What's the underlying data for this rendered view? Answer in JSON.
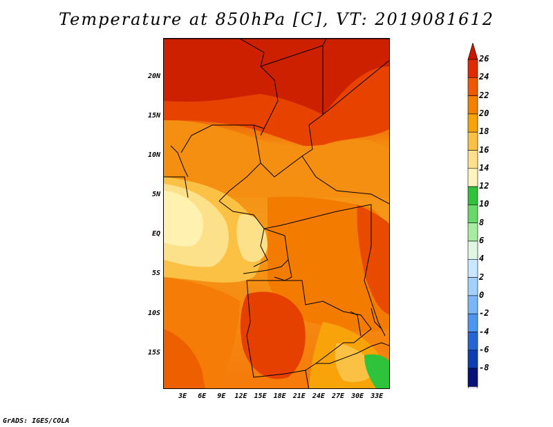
{
  "title": "Temperature at 850hPa [C], VT: 2019081612",
  "credit": "GrADS: IGES/COLA",
  "map": {
    "lat_range": [
      -19.5,
      25
    ],
    "lon_range": [
      0,
      35
    ],
    "lat_ticks": [
      {
        "label": "20N",
        "value": 20
      },
      {
        "label": "15N",
        "value": 15
      },
      {
        "label": "10N",
        "value": 10
      },
      {
        "label": "5N",
        "value": 5
      },
      {
        "label": "EQ",
        "value": 0
      },
      {
        "label": "5S",
        "value": -5
      },
      {
        "label": "10S",
        "value": -10
      },
      {
        "label": "15S",
        "value": -15
      }
    ],
    "lon_ticks": [
      {
        "label": "3E",
        "value": 3
      },
      {
        "label": "6E",
        "value": 6
      },
      {
        "label": "9E",
        "value": 9
      },
      {
        "label": "12E",
        "value": 12
      },
      {
        "label": "15E",
        "value": 15
      },
      {
        "label": "18E",
        "value": 18
      },
      {
        "label": "21E",
        "value": 21
      },
      {
        "label": "24E",
        "value": 24
      },
      {
        "label": "27E",
        "value": 27
      },
      {
        "label": "30E",
        "value": 30
      },
      {
        "label": "33E",
        "value": 33
      }
    ]
  },
  "colorbar": {
    "levels": [
      "26",
      "24",
      "22",
      "20",
      "18",
      "16",
      "14",
      "12",
      "10",
      "8",
      "6",
      "4",
      "2",
      "0",
      "-2",
      "-4",
      "-6",
      "-8"
    ],
    "colors": [
      "#a01500",
      "#e12a00",
      "#f05800",
      "#f58000",
      "#f8a30a",
      "#fbc145",
      "#fde18a",
      "#fff4c0",
      "#2ec33a",
      "#66d96a",
      "#a6ed9f",
      "#e0f7e2",
      "#c9e8ff",
      "#a3d1ff",
      "#7bb7f7",
      "#4d96ef",
      "#2565d6",
      "#0e3cb3",
      "#08107a",
      "#d8d8f5"
    ],
    "top_color": "#c81800",
    "bottom_color": "#dcdcf6"
  }
}
